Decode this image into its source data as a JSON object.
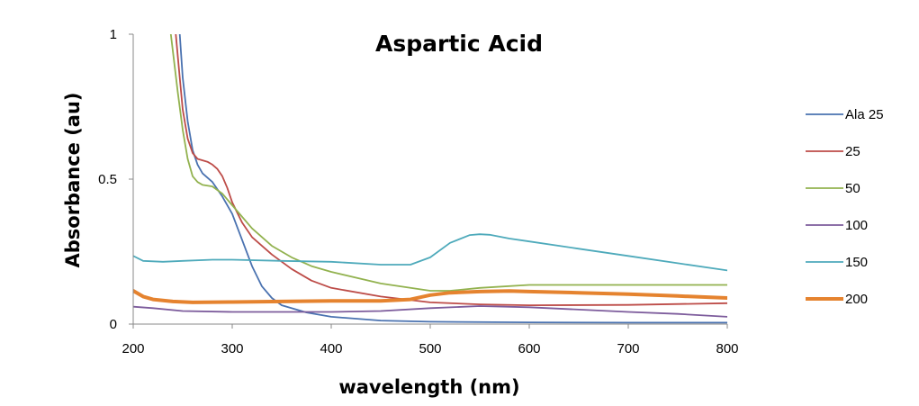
{
  "chart_data": {
    "type": "line",
    "title": "Aspartic Acid",
    "xlabel": "wavelength (nm)",
    "ylabel": "Absorbance (au)",
    "xlim": [
      200,
      800
    ],
    "ylim": [
      0,
      1
    ],
    "xticks": [
      200,
      300,
      400,
      500,
      600,
      700,
      800
    ],
    "yticks": [
      0,
      0.5,
      1
    ],
    "ytick_labels": [
      "0",
      "0.5",
      "1"
    ],
    "grid": false,
    "legend_position": "right",
    "series": [
      {
        "name": "Ala 25",
        "color": "#4a72b0",
        "x": [
          247,
          250,
          255,
          260,
          265,
          270,
          280,
          290,
          300,
          310,
          320,
          330,
          340,
          350,
          375,
          400,
          450,
          500,
          600,
          700,
          800
        ],
        "y": [
          1.0,
          0.85,
          0.7,
          0.6,
          0.55,
          0.52,
          0.49,
          0.44,
          0.38,
          0.29,
          0.2,
          0.13,
          0.09,
          0.065,
          0.04,
          0.025,
          0.012,
          0.008,
          0.006,
          0.005,
          0.005
        ]
      },
      {
        "name": "25",
        "color": "#bd4c48",
        "x": [
          243,
          247,
          250,
          255,
          260,
          265,
          270,
          275,
          280,
          285,
          290,
          295,
          300,
          310,
          320,
          340,
          360,
          380,
          400,
          450,
          500,
          550,
          600,
          700,
          800
        ],
        "y": [
          1.0,
          0.85,
          0.74,
          0.64,
          0.59,
          0.57,
          0.565,
          0.56,
          0.55,
          0.535,
          0.51,
          0.47,
          0.42,
          0.35,
          0.3,
          0.24,
          0.19,
          0.15,
          0.125,
          0.095,
          0.075,
          0.068,
          0.065,
          0.066,
          0.072
        ]
      },
      {
        "name": "50",
        "color": "#92b24f",
        "x": [
          238,
          245,
          250,
          255,
          260,
          265,
          270,
          280,
          290,
          300,
          320,
          340,
          360,
          380,
          400,
          450,
          500,
          520,
          550,
          600,
          700,
          800
        ],
        "y": [
          1.0,
          0.8,
          0.67,
          0.57,
          0.51,
          0.49,
          0.48,
          0.475,
          0.45,
          0.41,
          0.33,
          0.27,
          0.23,
          0.2,
          0.18,
          0.14,
          0.115,
          0.115,
          0.125,
          0.135,
          0.135,
          0.135
        ]
      },
      {
        "name": "100",
        "color": "#7d5c9c",
        "x": [
          200,
          220,
          250,
          300,
          350,
          400,
          450,
          500,
          550,
          600,
          650,
          700,
          750,
          800
        ],
        "y": [
          0.06,
          0.055,
          0.045,
          0.042,
          0.042,
          0.042,
          0.045,
          0.055,
          0.062,
          0.058,
          0.05,
          0.042,
          0.035,
          0.025
        ]
      },
      {
        "name": "150",
        "color": "#4eaabb",
        "x": [
          200,
          210,
          230,
          250,
          280,
          300,
          350,
          400,
          450,
          480,
          500,
          520,
          540,
          550,
          560,
          580,
          600,
          650,
          700,
          750,
          800
        ],
        "y": [
          0.235,
          0.218,
          0.215,
          0.218,
          0.222,
          0.222,
          0.218,
          0.215,
          0.205,
          0.205,
          0.23,
          0.28,
          0.307,
          0.31,
          0.308,
          0.295,
          0.285,
          0.26,
          0.235,
          0.21,
          0.185
        ]
      },
      {
        "name": "200",
        "color": "#e5832f",
        "x": [
          200,
          210,
          220,
          240,
          260,
          300,
          350,
          400,
          450,
          480,
          500,
          520,
          550,
          580,
          600,
          650,
          700,
          750,
          800
        ],
        "y": [
          0.115,
          0.095,
          0.085,
          0.078,
          0.075,
          0.076,
          0.078,
          0.08,
          0.08,
          0.085,
          0.1,
          0.108,
          0.112,
          0.114,
          0.112,
          0.108,
          0.103,
          0.097,
          0.09
        ]
      }
    ]
  }
}
